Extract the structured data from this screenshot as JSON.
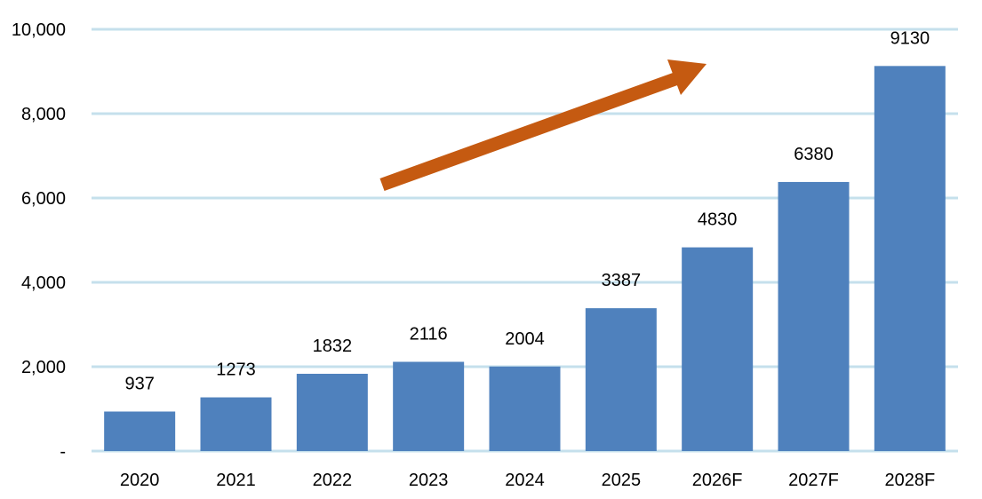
{
  "chart_data": {
    "type": "bar",
    "categories": [
      "2020",
      "2021",
      "2022",
      "2023",
      "2024",
      "2025",
      "2026F",
      "2027F",
      "2028F"
    ],
    "values": [
      937,
      1273,
      1832,
      2116,
      2004,
      3387,
      4830,
      6380,
      9130
    ],
    "data_labels": [
      "937",
      "1273",
      "1832",
      "2116",
      "2004",
      "3387",
      "4830",
      "6380",
      "9130"
    ],
    "y_ticks": [
      0,
      2000,
      4000,
      6000,
      8000,
      10000
    ],
    "y_tick_labels": [
      "-",
      "2,000",
      "4,000",
      "6,000",
      "8,000",
      "10,000"
    ],
    "ylim": [
      0,
      10000
    ],
    "grid": true,
    "legend": "none",
    "title": "",
    "xlabel": "",
    "ylabel": "",
    "annotation": "upward-trend-arrow",
    "colors": {
      "bar": "#4F81BD",
      "grid": "#C5E0EC",
      "arrow": "#C55A11"
    }
  }
}
